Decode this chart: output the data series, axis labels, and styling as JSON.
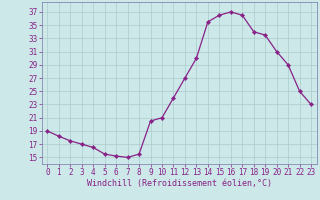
{
  "x": [
    0,
    1,
    2,
    3,
    4,
    5,
    6,
    7,
    8,
    9,
    10,
    11,
    12,
    13,
    14,
    15,
    16,
    17,
    18,
    19,
    20,
    21,
    22,
    23
  ],
  "y": [
    19,
    18.2,
    17.5,
    17,
    16.5,
    15.5,
    15.2,
    15,
    15.5,
    20.5,
    21,
    24,
    27,
    30,
    35.5,
    36.5,
    37,
    36.5,
    34,
    33.5,
    31,
    29,
    25,
    23
  ],
  "xlabel": "Windchill (Refroidissement éolien,°C)",
  "ylim": [
    14,
    38.5
  ],
  "xlim": [
    -0.5,
    23.5
  ],
  "yticks": [
    15,
    17,
    19,
    21,
    23,
    25,
    27,
    29,
    31,
    33,
    35,
    37
  ],
  "xticks": [
    0,
    1,
    2,
    3,
    4,
    5,
    6,
    7,
    8,
    9,
    10,
    11,
    12,
    13,
    14,
    15,
    16,
    17,
    18,
    19,
    20,
    21,
    22,
    23
  ],
  "line_color": "#882288",
  "marker": "D",
  "marker_size": 2.2,
  "bg_color": "#cce8e8",
  "grid_color": "#aacccc",
  "spine_color": "#7777aa",
  "tick_fontsize": 5.5,
  "xlabel_fontsize": 6.0,
  "linewidth": 0.9
}
